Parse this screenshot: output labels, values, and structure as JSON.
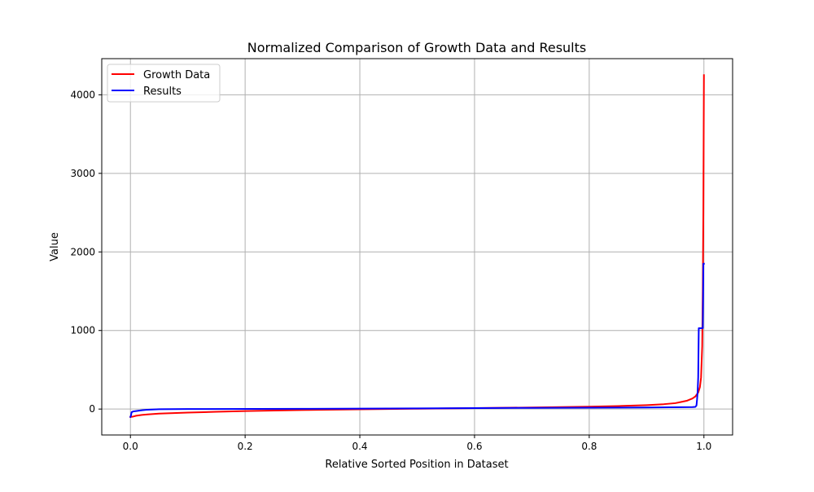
{
  "chart_data": {
    "type": "line",
    "title": "Normalized Comparison of Growth Data and Results",
    "xlabel": "Relative Sorted Position in Dataset",
    "ylabel": "Value",
    "xlim": [
      -0.05,
      1.05
    ],
    "ylim": [
      -330,
      4460
    ],
    "xticks": [
      0.0,
      0.2,
      0.4,
      0.6,
      0.8,
      1.0
    ],
    "xtick_labels": [
      "0.0",
      "0.2",
      "0.4",
      "0.6",
      "0.8",
      "1.0"
    ],
    "yticks": [
      0,
      1000,
      2000,
      3000,
      4000
    ],
    "ytick_labels": [
      "0",
      "1000",
      "2000",
      "3000",
      "4000"
    ],
    "grid": true,
    "legend_position": "top-left",
    "series": [
      {
        "name": "Growth Data",
        "color": "#ff0000",
        "x": [
          0.0,
          0.005,
          0.01,
          0.02,
          0.03,
          0.05,
          0.08,
          0.1,
          0.15,
          0.2,
          0.3,
          0.4,
          0.5,
          0.6,
          0.7,
          0.8,
          0.85,
          0.9,
          0.93,
          0.95,
          0.96,
          0.97,
          0.98,
          0.985,
          0.99,
          0.993,
          0.995,
          0.997,
          0.998,
          0.999,
          1.0
        ],
        "y": [
          -100,
          -95,
          -85,
          -75,
          -68,
          -58,
          -50,
          -45,
          -35,
          -25,
          -12,
          -3,
          5,
          12,
          20,
          30,
          38,
          50,
          62,
          75,
          90,
          105,
          135,
          160,
          210,
          280,
          400,
          800,
          1500,
          2500,
          4250
        ]
      },
      {
        "name": "Results",
        "color": "#0000ff",
        "x": [
          0.0,
          0.001,
          0.002,
          0.005,
          0.01,
          0.02,
          0.03,
          0.05,
          0.1,
          0.3,
          0.5,
          0.7,
          0.9,
          0.98,
          0.985,
          0.987,
          0.988,
          0.989,
          0.99,
          0.991,
          0.992,
          0.995,
          0.998,
          0.9985,
          0.999,
          1.0
        ],
        "y": [
          -100,
          -80,
          -40,
          -30,
          -25,
          -15,
          -8,
          -2,
          0,
          3,
          8,
          15,
          20,
          25,
          28,
          45,
          120,
          220,
          400,
          1030,
          1030,
          1030,
          1030,
          1400,
          1850,
          1850
        ]
      }
    ]
  }
}
